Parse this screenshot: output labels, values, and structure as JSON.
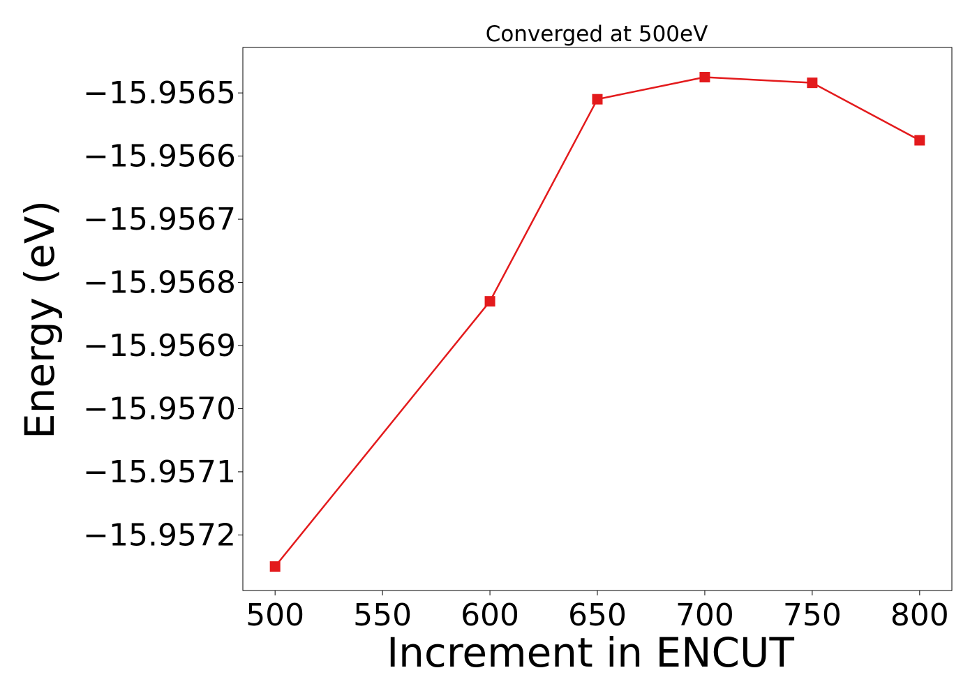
{
  "chart_data": {
    "type": "line",
    "title": "Converged at 500eV",
    "xlabel": "Increment in ENCUT",
    "ylabel": "Energy (eV)",
    "x": [
      500,
      600,
      650,
      700,
      750,
      800
    ],
    "series": [
      {
        "values": [
          -15.95725,
          -15.95683,
          -15.95651,
          -15.956475,
          -15.956484,
          -15.956575
        ],
        "color": "#e31a1c",
        "marker": "square"
      }
    ],
    "xlim": [
      485,
      815
    ],
    "ylim": [
      -15.957288,
      -15.956428
    ],
    "xticks": [
      500,
      550,
      600,
      650,
      700,
      750,
      800
    ],
    "xtick_labels": [
      "500",
      "550",
      "600",
      "650",
      "700",
      "750",
      "800"
    ],
    "yticks": [
      -15.9565,
      -15.9566,
      -15.9567,
      -15.9568,
      -15.9569,
      -15.957,
      -15.9571,
      -15.9572
    ],
    "ytick_labels": [
      "−15.9565",
      "−15.9566",
      "−15.9567",
      "−15.9568",
      "−15.9569",
      "−15.9570",
      "−15.9571",
      "−15.9572"
    ],
    "grid": false,
    "legend": false
  }
}
